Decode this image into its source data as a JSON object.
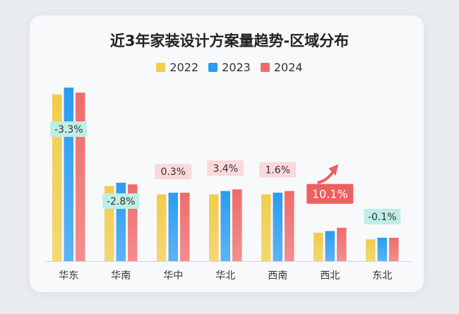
{
  "chart_data": {
    "type": "bar",
    "title": "近3年家装设计方案量趋势-区域分布",
    "categories": [
      "华东",
      "华南",
      "华中",
      "华北",
      "西南",
      "西北",
      "东北"
    ],
    "series": [
      {
        "name": "2022",
        "values": [
          100,
          45,
          40,
          40,
          40,
          17,
          13
        ]
      },
      {
        "name": "2023",
        "values": [
          104,
          47,
          41,
          42,
          41,
          18,
          14
        ]
      },
      {
        "name": "2024",
        "values": [
          101,
          46,
          41,
          43,
          42,
          20,
          14
        ]
      }
    ],
    "change_labels": [
      "-3.3%",
      "-2.8%",
      "0.3%",
      "3.4%",
      "1.6%",
      "10.1%",
      "-0.1%"
    ],
    "change_direction": [
      "down",
      "down",
      "up",
      "up",
      "up",
      "up",
      "down"
    ],
    "highlight_index": 5,
    "ylim": [
      0,
      110
    ],
    "xlabel": "",
    "ylabel": "",
    "legend_position": "top",
    "grid": false
  },
  "colors": {
    "s2022": "#f2cc4a",
    "s2023": "#2a9cf2",
    "s2024": "#f06b6b",
    "label_up_bg": "#fbd8dc",
    "label_down_bg": "#bfeee6",
    "label_highlight_bg": "#ee5f60",
    "arrow": "#ee5f60"
  }
}
